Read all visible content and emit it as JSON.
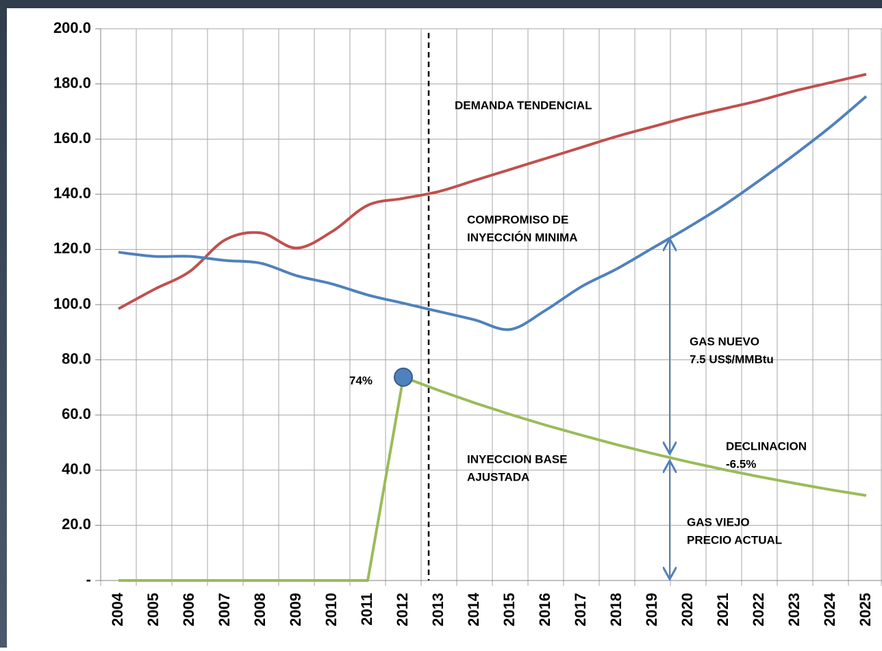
{
  "chart_data": {
    "type": "line",
    "categories": [
      "2004",
      "2005",
      "2006",
      "2007",
      "2008",
      "2009",
      "2010",
      "2011",
      "2012",
      "2013",
      "2014",
      "2015",
      "2016",
      "2017",
      "2018",
      "2019",
      "2020",
      "2021",
      "2022",
      "2023",
      "2024",
      "2025"
    ],
    "series": [
      {
        "color": "#c0504d",
        "smooth": true,
        "values": [
          98.5,
          105.5,
          112,
          123.5,
          126,
          120.5,
          126.5,
          136,
          138.5,
          141,
          145,
          149,
          153,
          157,
          161,
          164.5,
          168,
          171,
          174,
          177.5,
          180.5,
          183.5
        ]
      },
      {
        "color": "#4f81bd",
        "smooth": true,
        "values": [
          119,
          117.5,
          117.5,
          116,
          115,
          110.5,
          107.5,
          103.5,
          100.5,
          97.5,
          94.5,
          91,
          98,
          106.5,
          113,
          120.5,
          128,
          136,
          145,
          154.5,
          164.5,
          175.5
        ]
      },
      {
        "color": "#9bbb59",
        "smooth": false,
        "highlight": 8,
        "marker_color": "#4f81bd",
        "values": [
          0,
          0,
          0,
          0,
          0,
          0,
          0,
          0,
          73.7,
          68.9,
          64.4,
          60.2,
          56.3,
          52.7,
          49.2,
          46,
          43,
          40.2,
          37.6,
          35.2,
          32.9,
          30.8
        ]
      }
    ],
    "ylim": [
      0,
      200
    ],
    "yticks": [
      {
        "value": 0,
        "label": "-"
      },
      {
        "value": 20,
        "label": "20.0"
      },
      {
        "value": 40,
        "label": "40.0"
      },
      {
        "value": 60,
        "label": "60.0"
      },
      {
        "value": 80,
        "label": "80.0"
      },
      {
        "value": 100,
        "label": "100.0"
      },
      {
        "value": 120,
        "label": "120.0"
      },
      {
        "value": 140,
        "label": "140.0"
      },
      {
        "value": 160,
        "label": "160.0"
      },
      {
        "value": 180,
        "label": "180.0"
      },
      {
        "value": 200,
        "label": "200.0"
      }
    ],
    "grid": true,
    "annotations": [
      {
        "lines": [
          "DEMANDA TENDENCIAL"
        ]
      },
      {
        "lines": [
          "COMPROMISO DE",
          "INYECCIÓN MINIMA"
        ]
      },
      {
        "lines": [
          "GAS NUEVO",
          "7.5 US$/MMBtu"
        ]
      },
      {
        "lines": [
          "DECLINACION",
          "-6.5%"
        ]
      },
      {
        "lines": [
          "INYECCION BASE",
          "AJUSTADA"
        ]
      },
      {
        "lines": [
          "GAS VIEJO",
          "PRECIO ACTUAL"
        ]
      },
      {
        "lines": [
          "74%"
        ]
      }
    ]
  }
}
